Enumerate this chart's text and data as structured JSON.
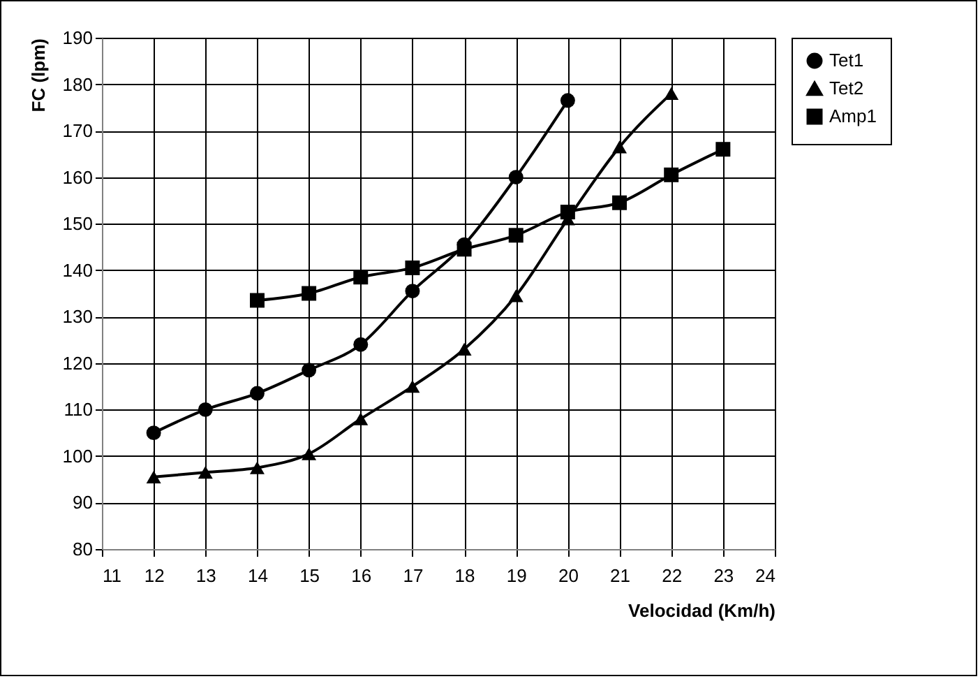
{
  "chart_data": {
    "type": "line",
    "xlabel": "Velocidad (Km/h)",
    "ylabel": "FC (lpm)",
    "xlim": [
      11,
      24
    ],
    "xticks": [
      11,
      12,
      13,
      14,
      15,
      16,
      17,
      18,
      19,
      20,
      21,
      22,
      23,
      24
    ],
    "ylim": [
      80,
      190
    ],
    "yticks": [
      80,
      90,
      100,
      110,
      120,
      130,
      140,
      150,
      160,
      170,
      180,
      190
    ],
    "grid": true,
    "legend": "right",
    "series": [
      {
        "name": "Tet1",
        "color": "#000000",
        "marker": "circle",
        "x": [
          12,
          13,
          14,
          15,
          16,
          17,
          18,
          19,
          20
        ],
        "values": [
          105,
          110,
          113.5,
          118.5,
          124,
          135.5,
          145.5,
          160,
          176.5
        ]
      },
      {
        "name": "Tet2",
        "color": "#000000",
        "marker": "triangle",
        "x": [
          12,
          13,
          14,
          15,
          16,
          17,
          18,
          19,
          20,
          21,
          22
        ],
        "values": [
          95.5,
          96.5,
          97.5,
          100.5,
          108,
          115,
          123,
          134.5,
          151,
          166.5,
          178
        ]
      },
      {
        "name": "Amp1",
        "color": "#000000",
        "marker": "square",
        "x": [
          14,
          15,
          16,
          17,
          18,
          19,
          20,
          21,
          22,
          23
        ],
        "values": [
          133.5,
          135,
          138.5,
          140.5,
          144.5,
          147.5,
          152.5,
          154.5,
          160.5,
          166
        ]
      }
    ]
  }
}
